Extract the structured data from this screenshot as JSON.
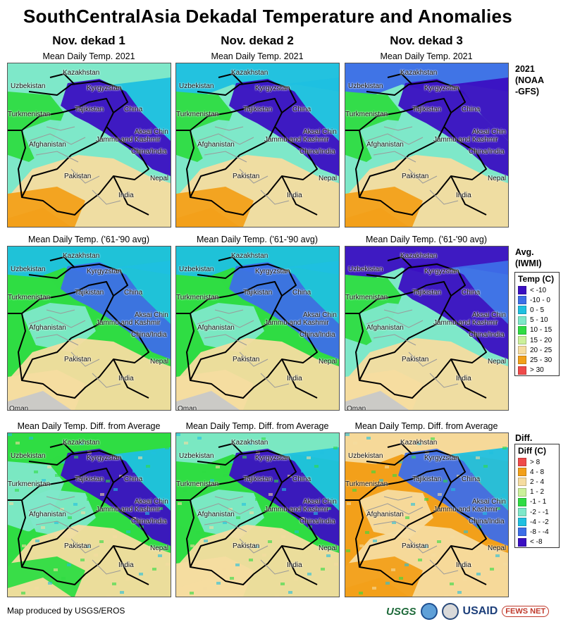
{
  "title": "SouthCentralAsia Dekadal Temperature and Anomalies",
  "columns": [
    "Nov. dekad 1",
    "Nov. dekad 2",
    "Nov. dekad 3"
  ],
  "rows": [
    {
      "map_title": "Mean Daily Temp. 2021",
      "side_label": "2021 (NOAA -GFS)",
      "scheme": "temp"
    },
    {
      "map_title": "Mean Daily Temp. ('61-'90 avg)",
      "side_label": "Avg. (IWMI)",
      "scheme": "temp"
    },
    {
      "map_title": "Mean Daily Temp. Diff. from Average",
      "side_label": "Diff.",
      "scheme": "diff"
    }
  ],
  "map_labels": [
    "Kazakhstan",
    "Uzbekistan",
    "Kyrgyzstan",
    "Tajikistan",
    "China",
    "Turkmenistan",
    "Aksai Chin",
    "Jammu and Kashmir",
    "Afghanistan",
    "China/India",
    "Pakistan",
    "Nepal",
    "India",
    "Oman"
  ],
  "temp_legend": {
    "title": "Temp (C)",
    "items": [
      {
        "label": "< -10",
        "color": "#3b0fc2"
      },
      {
        "label": "-10 - 0",
        "color": "#3d6ee8"
      },
      {
        "label": "0 - 5",
        "color": "#1fc0e0"
      },
      {
        "label": "5 - 10",
        "color": "#7ee8c9"
      },
      {
        "label": "10 - 15",
        "color": "#2fdc43"
      },
      {
        "label": "15 - 20",
        "color": "#cbf09a"
      },
      {
        "label": "20 - 25",
        "color": "#f5dca0"
      },
      {
        "label": "25 - 30",
        "color": "#f2a01a"
      },
      {
        "label": "> 30",
        "color": "#ef4a4a"
      }
    ]
  },
  "diff_legend": {
    "title": "Diff (C)",
    "items": [
      {
        "label": "> 8",
        "color": "#ef4a4a"
      },
      {
        "label": "4 - 8",
        "color": "#f2a01a"
      },
      {
        "label": "2 - 4",
        "color": "#f5dca0"
      },
      {
        "label": "1 - 2",
        "color": "#cbf09a"
      },
      {
        "label": "-1 - 1",
        "color": "#2fdc43"
      },
      {
        "label": "-2 - -1",
        "color": "#7ee8c9"
      },
      {
        "label": "-4 - -2",
        "color": "#1fc0e0"
      },
      {
        "label": "-8 - -4",
        "color": "#3d6ee8"
      },
      {
        "label": "< -8",
        "color": "#3b0fc2"
      }
    ]
  },
  "footer": "Map produced by USGS/EROS",
  "logos": [
    "USGS",
    "USAID",
    "FEWS NET"
  ]
}
